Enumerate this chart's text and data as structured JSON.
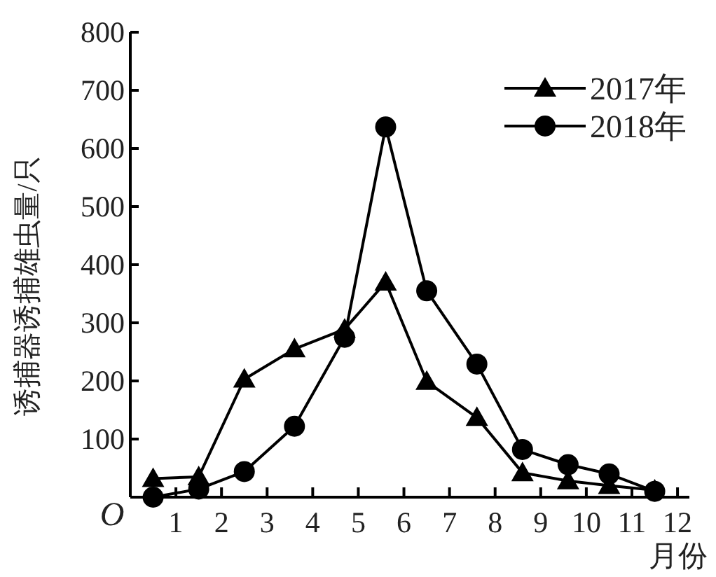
{
  "chart_data": {
    "type": "line",
    "xlabel": "月份",
    "ylabel": "诱捕器诱捕雄虫量/只",
    "annotations": [
      "O"
    ],
    "xlim": [
      0,
      12.26
    ],
    "xticks": [
      1,
      2,
      3,
      4,
      5,
      6,
      7,
      8,
      9,
      10,
      11,
      12
    ],
    "ylim": [
      0,
      800
    ],
    "yticks": [
      100,
      200,
      300,
      400,
      500,
      600,
      700,
      800
    ],
    "grid": false,
    "legend": "top right",
    "line_style": "solid",
    "series": [
      {
        "name": "2017年",
        "color": "#000000",
        "marker": "triangle",
        "x": [
          0.5,
          1.5,
          2.5,
          3.6,
          4.7,
          5.6,
          6.5,
          7.6,
          8.6,
          9.6,
          10.5,
          11.5
        ],
        "values": [
          32,
          35,
          203,
          255,
          289,
          370,
          199,
          137,
          42,
          28,
          20,
          12
        ]
      },
      {
        "name": "2018年",
        "color": "#000000",
        "marker": "circle",
        "x": [
          0.5,
          1.5,
          2.5,
          3.6,
          4.7,
          5.6,
          6.5,
          7.6,
          8.6,
          9.6,
          10.5,
          11.5
        ],
        "values": [
          0,
          14,
          44,
          122,
          275,
          637,
          355,
          229,
          82,
          56,
          40,
          10
        ]
      }
    ]
  }
}
